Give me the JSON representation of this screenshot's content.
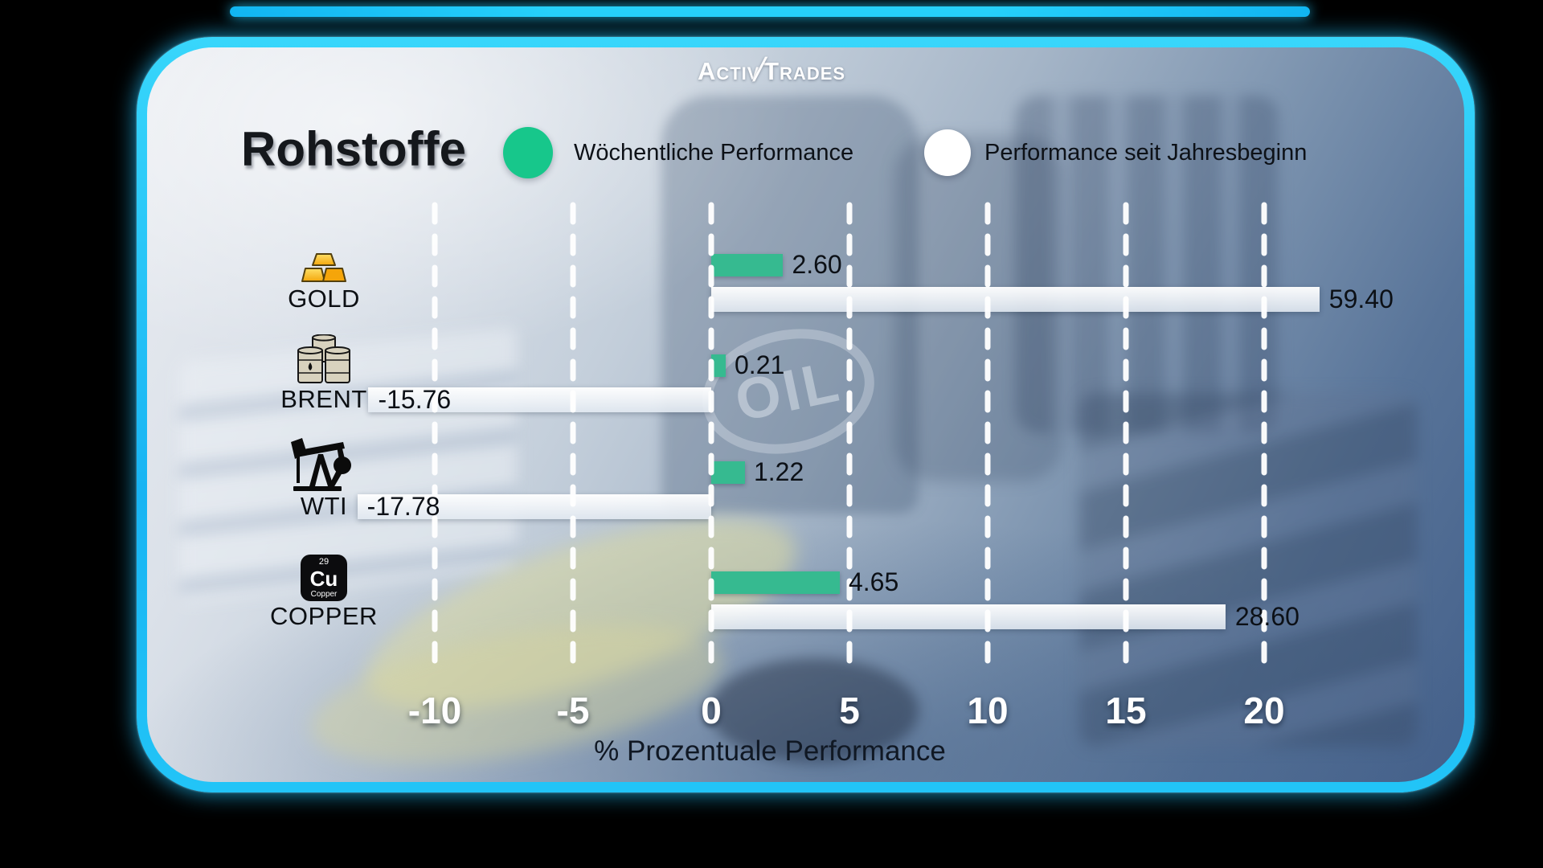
{
  "logo": {
    "left": "Activ",
    "slash": "/",
    "right": "Trades"
  },
  "title": "Rohstoffe",
  "watermark": "OIL",
  "legend": [
    {
      "label": "Wöchentliche Performance",
      "color": "#17c78b"
    },
    {
      "label": "Performance seit Jahresbeginn",
      "color": "#ffffff"
    }
  ],
  "colors": {
    "weekly_bar": "#36ba90",
    "ytd_bar": "#f4f7fa",
    "frame_accent": "#1fc0f6",
    "tick_text": "#ffffff"
  },
  "chart_data": {
    "type": "bar",
    "orientation": "horizontal",
    "title": "Rohstoffe",
    "categories": [
      "GOLD",
      "BRENT",
      "WTI",
      "COPPER"
    ],
    "category_icons": [
      "gold-bars-icon",
      "oil-barrels-icon",
      "oil-pumpjack-icon",
      "copper-element-icon"
    ],
    "series": [
      {
        "name": "Wöchentliche Performance",
        "color": "#36ba90",
        "values": [
          2.6,
          0.21,
          1.22,
          4.65
        ],
        "labels": [
          "2.60",
          "0.21",
          "1.22",
          "4.65"
        ]
      },
      {
        "name": "Performance seit Jahresbeginn",
        "color": "#f4f7fa",
        "values": [
          59.4,
          -15.76,
          -17.78,
          28.6
        ],
        "labels": [
          "59.40",
          "-15.76",
          "-17.78",
          "28.60"
        ],
        "bar_clipped_at": [
          22.0,
          -12.4,
          -12.8,
          18.6
        ]
      }
    ],
    "xlabel": "% Prozentuale Performance",
    "x_ticks": [
      "-10",
      "-5",
      "0",
      "5",
      "10",
      "15",
      "20"
    ],
    "x_tick_values": [
      -10,
      -5,
      0,
      5,
      10,
      15,
      20
    ],
    "xlim": [
      -12.6,
      22.3
    ],
    "grid": "vertical-dashed-white",
    "legend_position": "top"
  }
}
